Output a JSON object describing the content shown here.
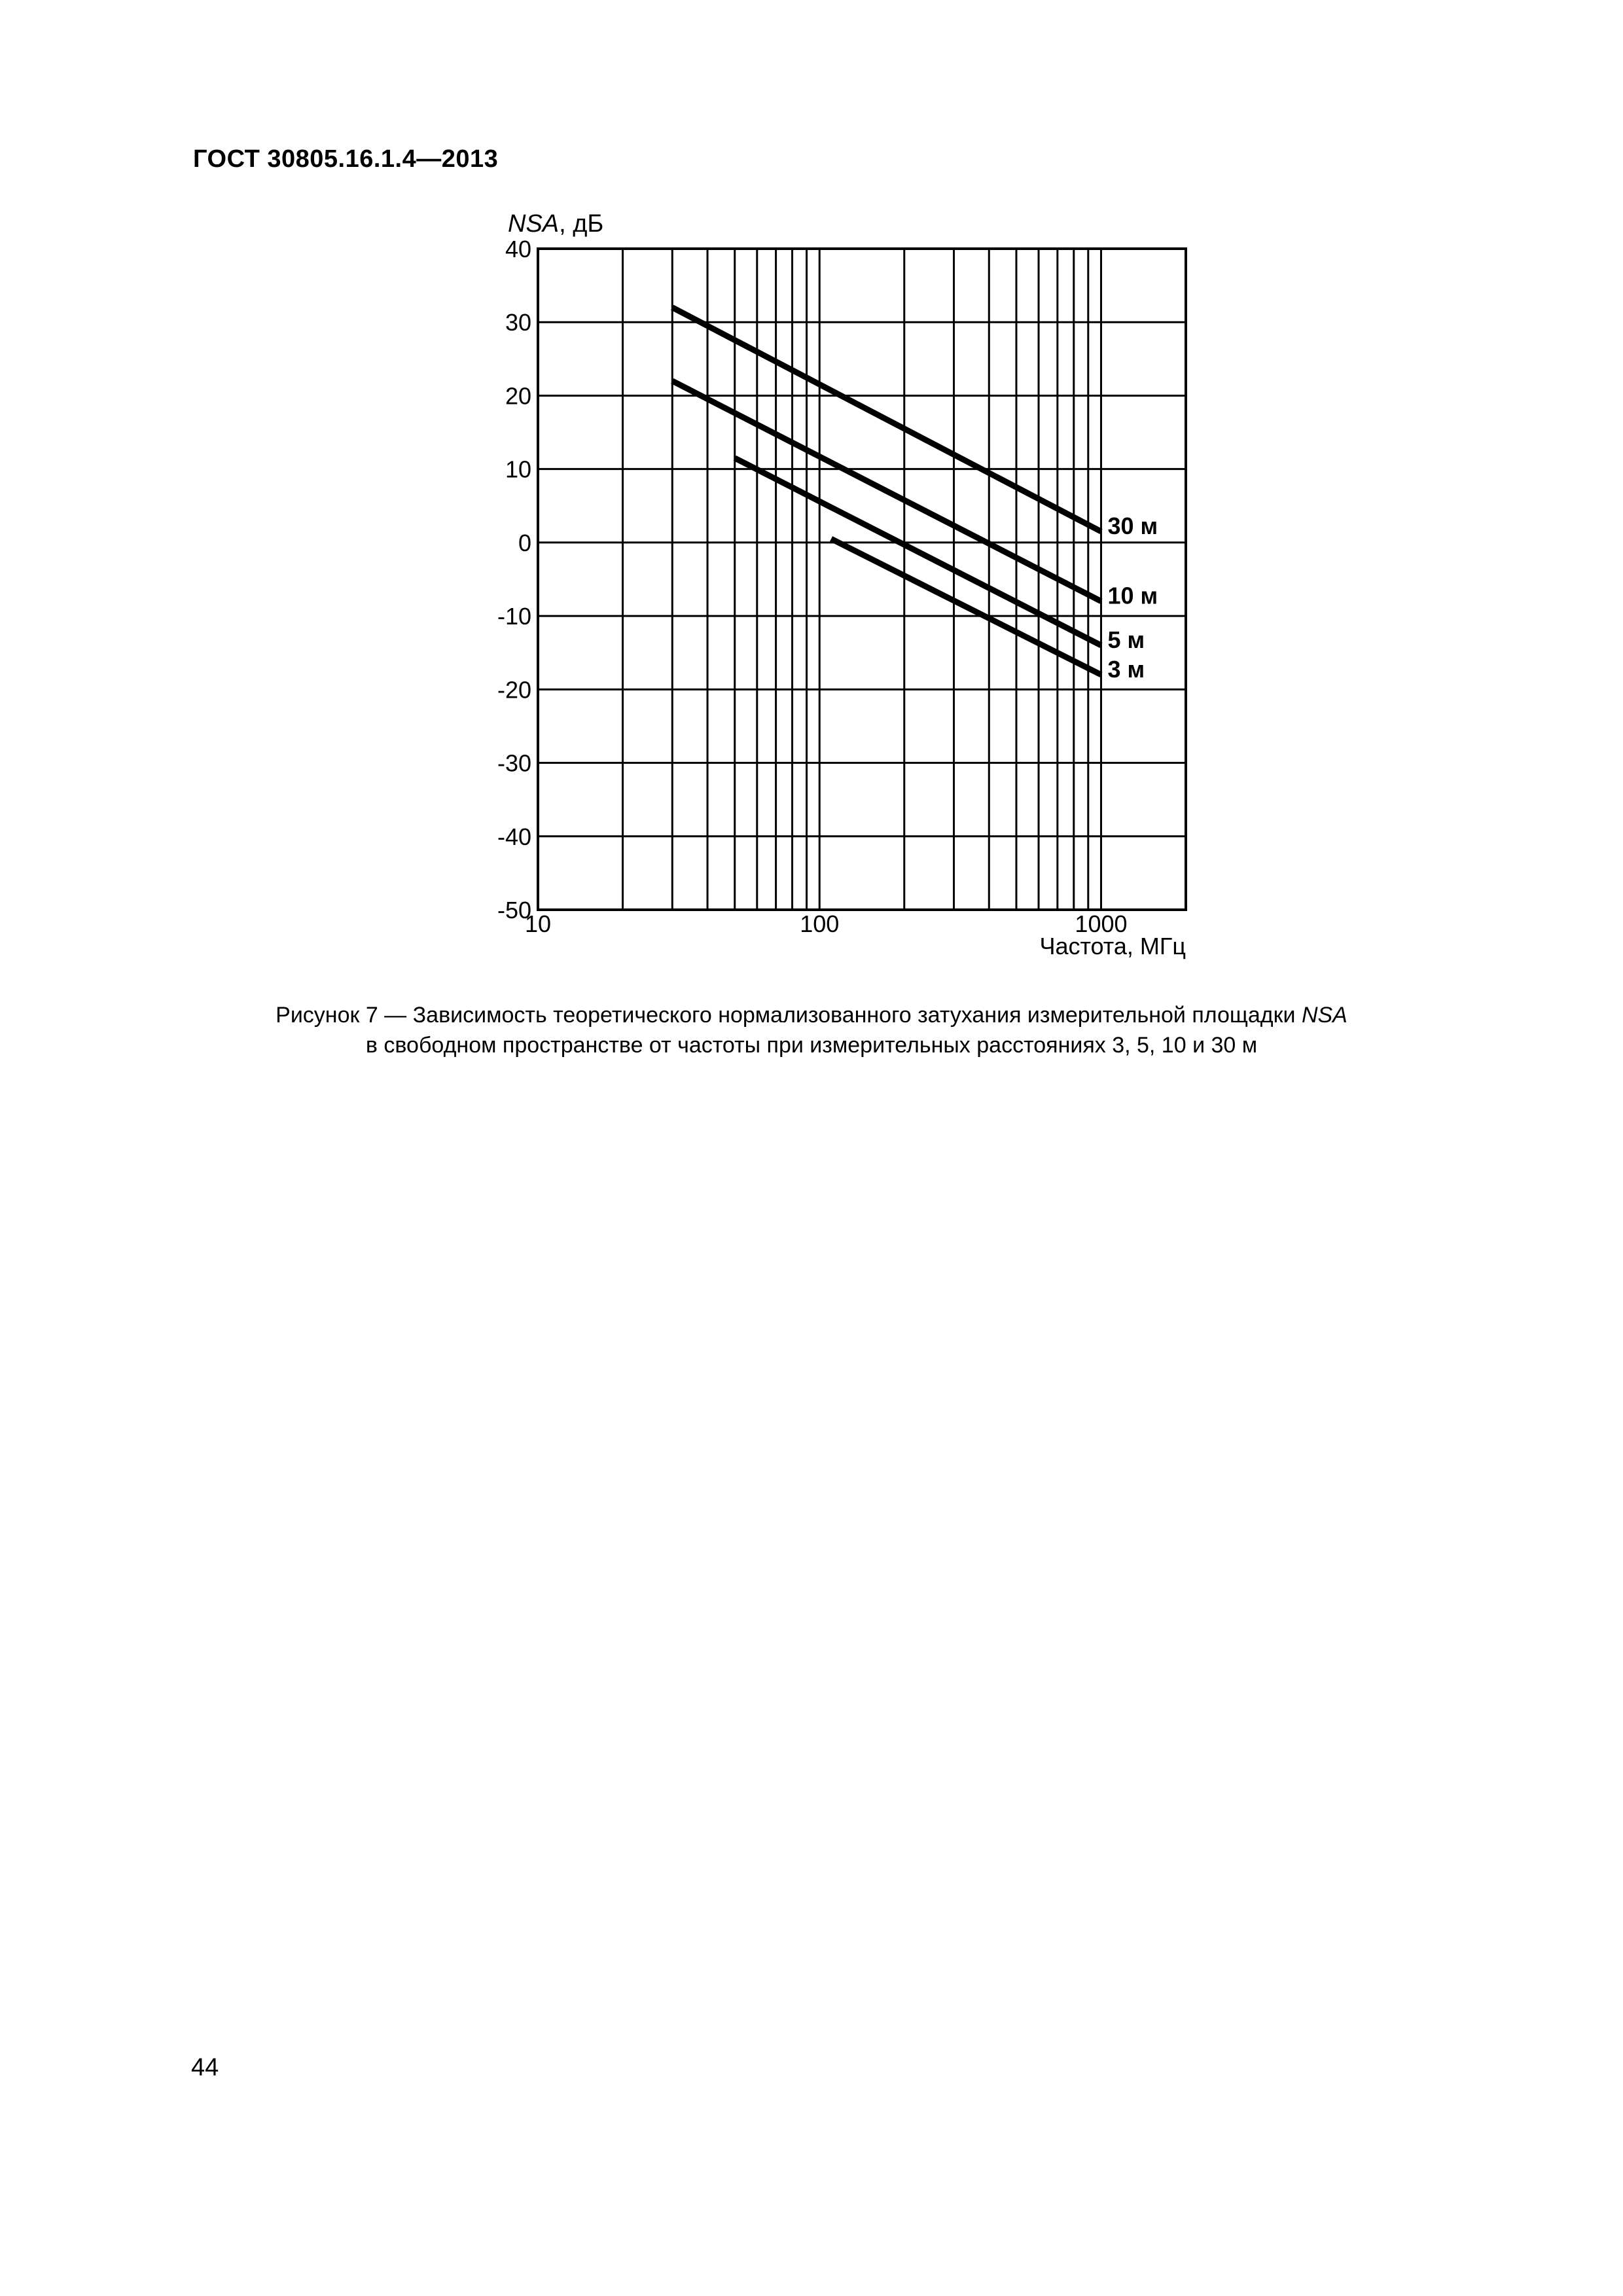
{
  "header": {
    "doc_id": "ГОСТ 30805.16.1.4—2013"
  },
  "chart_data": {
    "type": "line",
    "ylabel_italic": "NSA",
    "ylabel_rest": ", дБ",
    "xlabel": "Частота, МГц",
    "x_scale": "log",
    "xlim": [
      10,
      2000
    ],
    "ylim": [
      -50,
      40
    ],
    "x_tick_labels": [
      "10",
      "100",
      "1000"
    ],
    "y_tick_labels": [
      "40",
      "30",
      "20",
      "10",
      "0",
      "-10",
      "-20",
      "-30",
      "-40",
      "-50"
    ],
    "grid": true,
    "series": [
      {
        "name": "30 м",
        "x": [
          30,
          1000
        ],
        "y": [
          32,
          1.5
        ]
      },
      {
        "name": "10 м",
        "x": [
          30,
          1000
        ],
        "y": [
          22,
          -8
        ]
      },
      {
        "name": "5 м",
        "x": [
          50,
          1000
        ],
        "y": [
          11.5,
          -14
        ]
      },
      {
        "name": "3 м",
        "x": [
          110,
          1000
        ],
        "y": [
          0.5,
          -18
        ]
      }
    ]
  },
  "caption": {
    "line1_before": "Рисунок 7 — Зависимость теоретического нормализованного затухания измерительной площадки ",
    "line1_italic": "NSA",
    "line2": "в свободном пространстве от частоты при измерительных расстояниях 3, 5, 10 и 30 м"
  },
  "page": {
    "number": "44"
  }
}
